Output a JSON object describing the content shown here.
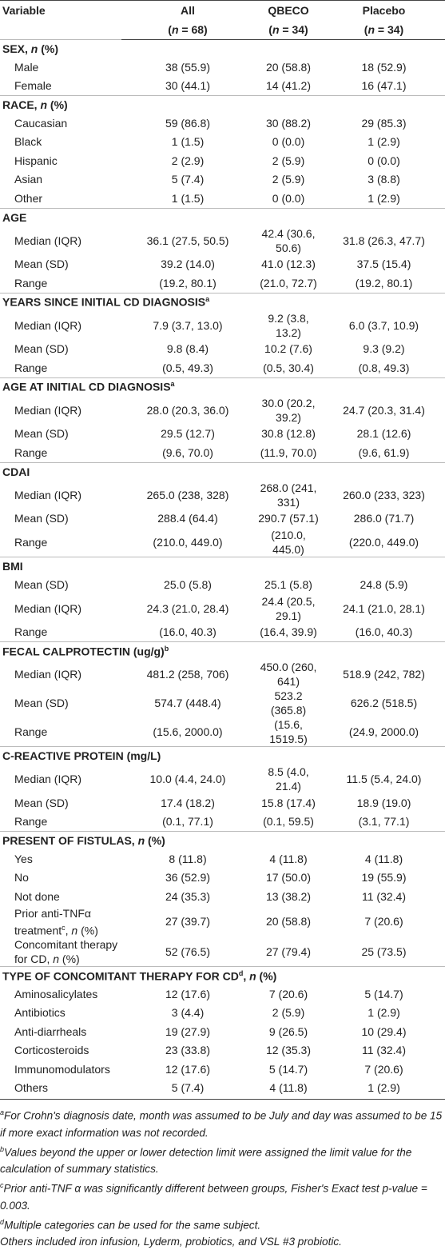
{
  "header": {
    "variable": "Variable",
    "groups": [
      {
        "name": "All",
        "n": "(n = 68)"
      },
      {
        "name": "QBECO",
        "n": "(n = 34)"
      },
      {
        "name": "Placebo",
        "n": "(n = 34)"
      }
    ]
  },
  "sections": [
    {
      "title": "SEX",
      "unit": ", n (%)",
      "rows": [
        {
          "label": "Male",
          "values": [
            "38 (55.9)",
            "20 (58.8)",
            "18 (52.9)"
          ]
        },
        {
          "label": "Female",
          "values": [
            "30 (44.1)",
            "14 (41.2)",
            "16 (47.1)"
          ]
        }
      ]
    },
    {
      "title": "RACE",
      "unit": ", n (%)",
      "rows": [
        {
          "label": "Caucasian",
          "values": [
            "59 (86.8)",
            "30 (88.2)",
            "29 (85.3)"
          ]
        },
        {
          "label": "Black",
          "values": [
            "1 (1.5)",
            "0 (0.0)",
            "1 (2.9)"
          ]
        },
        {
          "label": "Hispanic",
          "values": [
            "2 (2.9)",
            "2 (5.9)",
            "0 (0.0)"
          ]
        },
        {
          "label": "Asian",
          "values": [
            "5 (7.4)",
            "2 (5.9)",
            "3 (8.8)"
          ]
        },
        {
          "label": "Other",
          "values": [
            "1 (1.5)",
            "0 (0.0)",
            "1 (2.9)"
          ]
        }
      ]
    },
    {
      "title": "AGE",
      "rows": [
        {
          "label": "Median (IQR)",
          "values": [
            "36.1 (27.5, 50.5)",
            "42.4 (30.6, 50.6)",
            "31.8 (26.3, 47.7)"
          ]
        },
        {
          "label": "Mean (SD)",
          "values": [
            "39.2 (14.0)",
            "41.0 (12.3)",
            "37.5 (15.4)"
          ]
        },
        {
          "label": "Range",
          "values": [
            "(19.2, 80.1)",
            "(21.0, 72.7)",
            "(19.2, 80.1)"
          ]
        }
      ]
    },
    {
      "title": "YEARS SINCE INITIAL CD DIAGNOSIS",
      "note": "a",
      "rows": [
        {
          "label": "Median (IQR)",
          "values": [
            "7.9 (3.7, 13.0)",
            "9.2 (3.8, 13.2)",
            "6.0 (3.7, 10.9)"
          ]
        },
        {
          "label": "Mean (SD)",
          "values": [
            "9.8 (8.4)",
            "10.2 (7.6)",
            "9.3 (9.2)"
          ]
        },
        {
          "label": "Range",
          "values": [
            "(0.5, 49.3)",
            "(0.5, 30.4)",
            "(0.8, 49.3)"
          ]
        }
      ]
    },
    {
      "title": "AGE AT INITIAL CD DIAGNOSIS",
      "note": "a",
      "rows": [
        {
          "label": "Median (IQR)",
          "values": [
            "28.0 (20.3, 36.0)",
            "30.0 (20.2, 39.2)",
            "24.7 (20.3, 31.4)"
          ]
        },
        {
          "label": "Mean (SD)",
          "values": [
            "29.5 (12.7)",
            "30.8 (12.8)",
            "28.1 (12.6)"
          ]
        },
        {
          "label": "Range",
          "values": [
            "(9.6, 70.0)",
            "(11.9, 70.0)",
            "(9.6, 61.9)"
          ]
        }
      ]
    },
    {
      "title": "CDAI",
      "rows": [
        {
          "label": "Median (IQR)",
          "values": [
            "265.0 (238, 328)",
            "268.0 (241, 331)",
            "260.0 (233, 323)"
          ]
        },
        {
          "label": "Mean (SD)",
          "values": [
            "288.4 (64.4)",
            "290.7 (57.1)",
            "286.0 (71.7)"
          ]
        },
        {
          "label": "Range",
          "values": [
            "(210.0, 449.0)",
            "(210.0, 445.0)",
            "(220.0, 449.0)"
          ]
        }
      ]
    },
    {
      "title": "BMI",
      "rows": [
        {
          "label": "Mean (SD)",
          "values": [
            "25.0 (5.8)",
            "25.1 (5.8)",
            "24.8 (5.9)"
          ]
        },
        {
          "label": "Median (IQR)",
          "values": [
            "24.3 (21.0, 28.4)",
            "24.4 (20.5, 29.1)",
            "24.1 (21.0, 28.1)"
          ]
        },
        {
          "label": "Range",
          "values": [
            "(16.0, 40.3)",
            "(16.4, 39.9)",
            "(16.0, 40.3)"
          ]
        }
      ]
    },
    {
      "title": "FECAL CALPROTECTIN (ug/g)",
      "note": "b",
      "rows": [
        {
          "label": "Median (IQR)",
          "values": [
            "481.2 (258, 706)",
            "450.0 (260, 641)",
            "518.9 (242, 782)"
          ]
        },
        {
          "label": "Mean (SD)",
          "values": [
            "574.7 (448.4)",
            "523.2 (365.8)",
            "626.2 (518.5)"
          ]
        },
        {
          "label": "Range",
          "values": [
            "(15.6, 2000.0)",
            "(15.6, 1519.5)",
            "(24.9, 2000.0)"
          ]
        }
      ]
    },
    {
      "title": "C-REACTIVE PROTEIN (mg/L)",
      "rows": [
        {
          "label": "Median (IQR)",
          "values": [
            "10.0 (4.4, 24.0)",
            "8.5 (4.0, 21.4)",
            "11.5 (5.4, 24.0)"
          ]
        },
        {
          "label": "Mean (SD)",
          "values": [
            "17.4 (18.2)",
            "15.8 (17.4)",
            "18.9 (19.0)"
          ]
        },
        {
          "label": "Range",
          "values": [
            "(0.1, 77.1)",
            "(0.1, 59.5)",
            "(3.1, 77.1)"
          ]
        }
      ]
    },
    {
      "title": "PRESENT OF FISTULAS",
      "unit": ", n (%)",
      "rows": [
        {
          "label": "Yes",
          "values": [
            "8 (11.8)",
            "4 (11.8)",
            "4 (11.8)"
          ]
        },
        {
          "label": "No",
          "values": [
            "36 (52.9)",
            "17 (50.0)",
            "19 (55.9)"
          ]
        },
        {
          "label": "Not done",
          "values": [
            "24 (35.3)",
            "13 (38.2)",
            "11 (32.4)"
          ]
        },
        {
          "label": "Prior anti-TNFα treatment",
          "note": "c",
          "unit": ", n (%)",
          "values": [
            "27 (39.7)",
            "20 (58.8)",
            "7 (20.6)"
          ]
        },
        {
          "label": "Concomitant therapy for CD",
          "unit": ", n (%)",
          "values": [
            "52 (76.5)",
            "27 (79.4)",
            "25 (73.5)"
          ]
        }
      ]
    },
    {
      "title": "TYPE OF CONCOMITANT THERAPY FOR CD",
      "note": "d",
      "unit": ", n (%)",
      "rows": [
        {
          "label": "Aminosalicylates",
          "values": [
            "12 (17.6)",
            "7 (20.6)",
            "5 (14.7)"
          ]
        },
        {
          "label": "Antibiotics",
          "values": [
            "3 (4.4)",
            "2 (5.9)",
            "1 (2.9)"
          ]
        },
        {
          "label": "Anti-diarrheals",
          "values": [
            "19 (27.9)",
            "9 (26.5)",
            "10 (29.4)"
          ]
        },
        {
          "label": "Corticosteroids",
          "values": [
            "23 (33.8)",
            "12 (35.3)",
            "11 (32.4)"
          ]
        },
        {
          "label": "Immunomodulators",
          "values": [
            "12 (17.6)",
            "5 (14.7)",
            "7 (20.6)"
          ]
        },
        {
          "label": "Others",
          "values": [
            "5 (7.4)",
            "4 (11.8)",
            "1 (2.9)"
          ]
        }
      ]
    }
  ],
  "footnotes": [
    {
      "mark": "a",
      "text": "For Crohn's diagnosis date, month was assumed to be July and day was assumed to be 15 if more exact information was not recorded."
    },
    {
      "mark": "b",
      "text": "Values beyond the upper or lower detection limit were assigned the limit value for the calculation of summary statistics."
    },
    {
      "mark": "c",
      "text": "Prior anti-TNF α was significantly different between groups, Fisher's Exact test p-value = 0.003."
    },
    {
      "mark": "d",
      "text": "Multiple categories can be used for the same subject."
    },
    {
      "text": "Others included iron infusion, Lyderm, probiotics, and VSL #3 probiotic."
    }
  ]
}
